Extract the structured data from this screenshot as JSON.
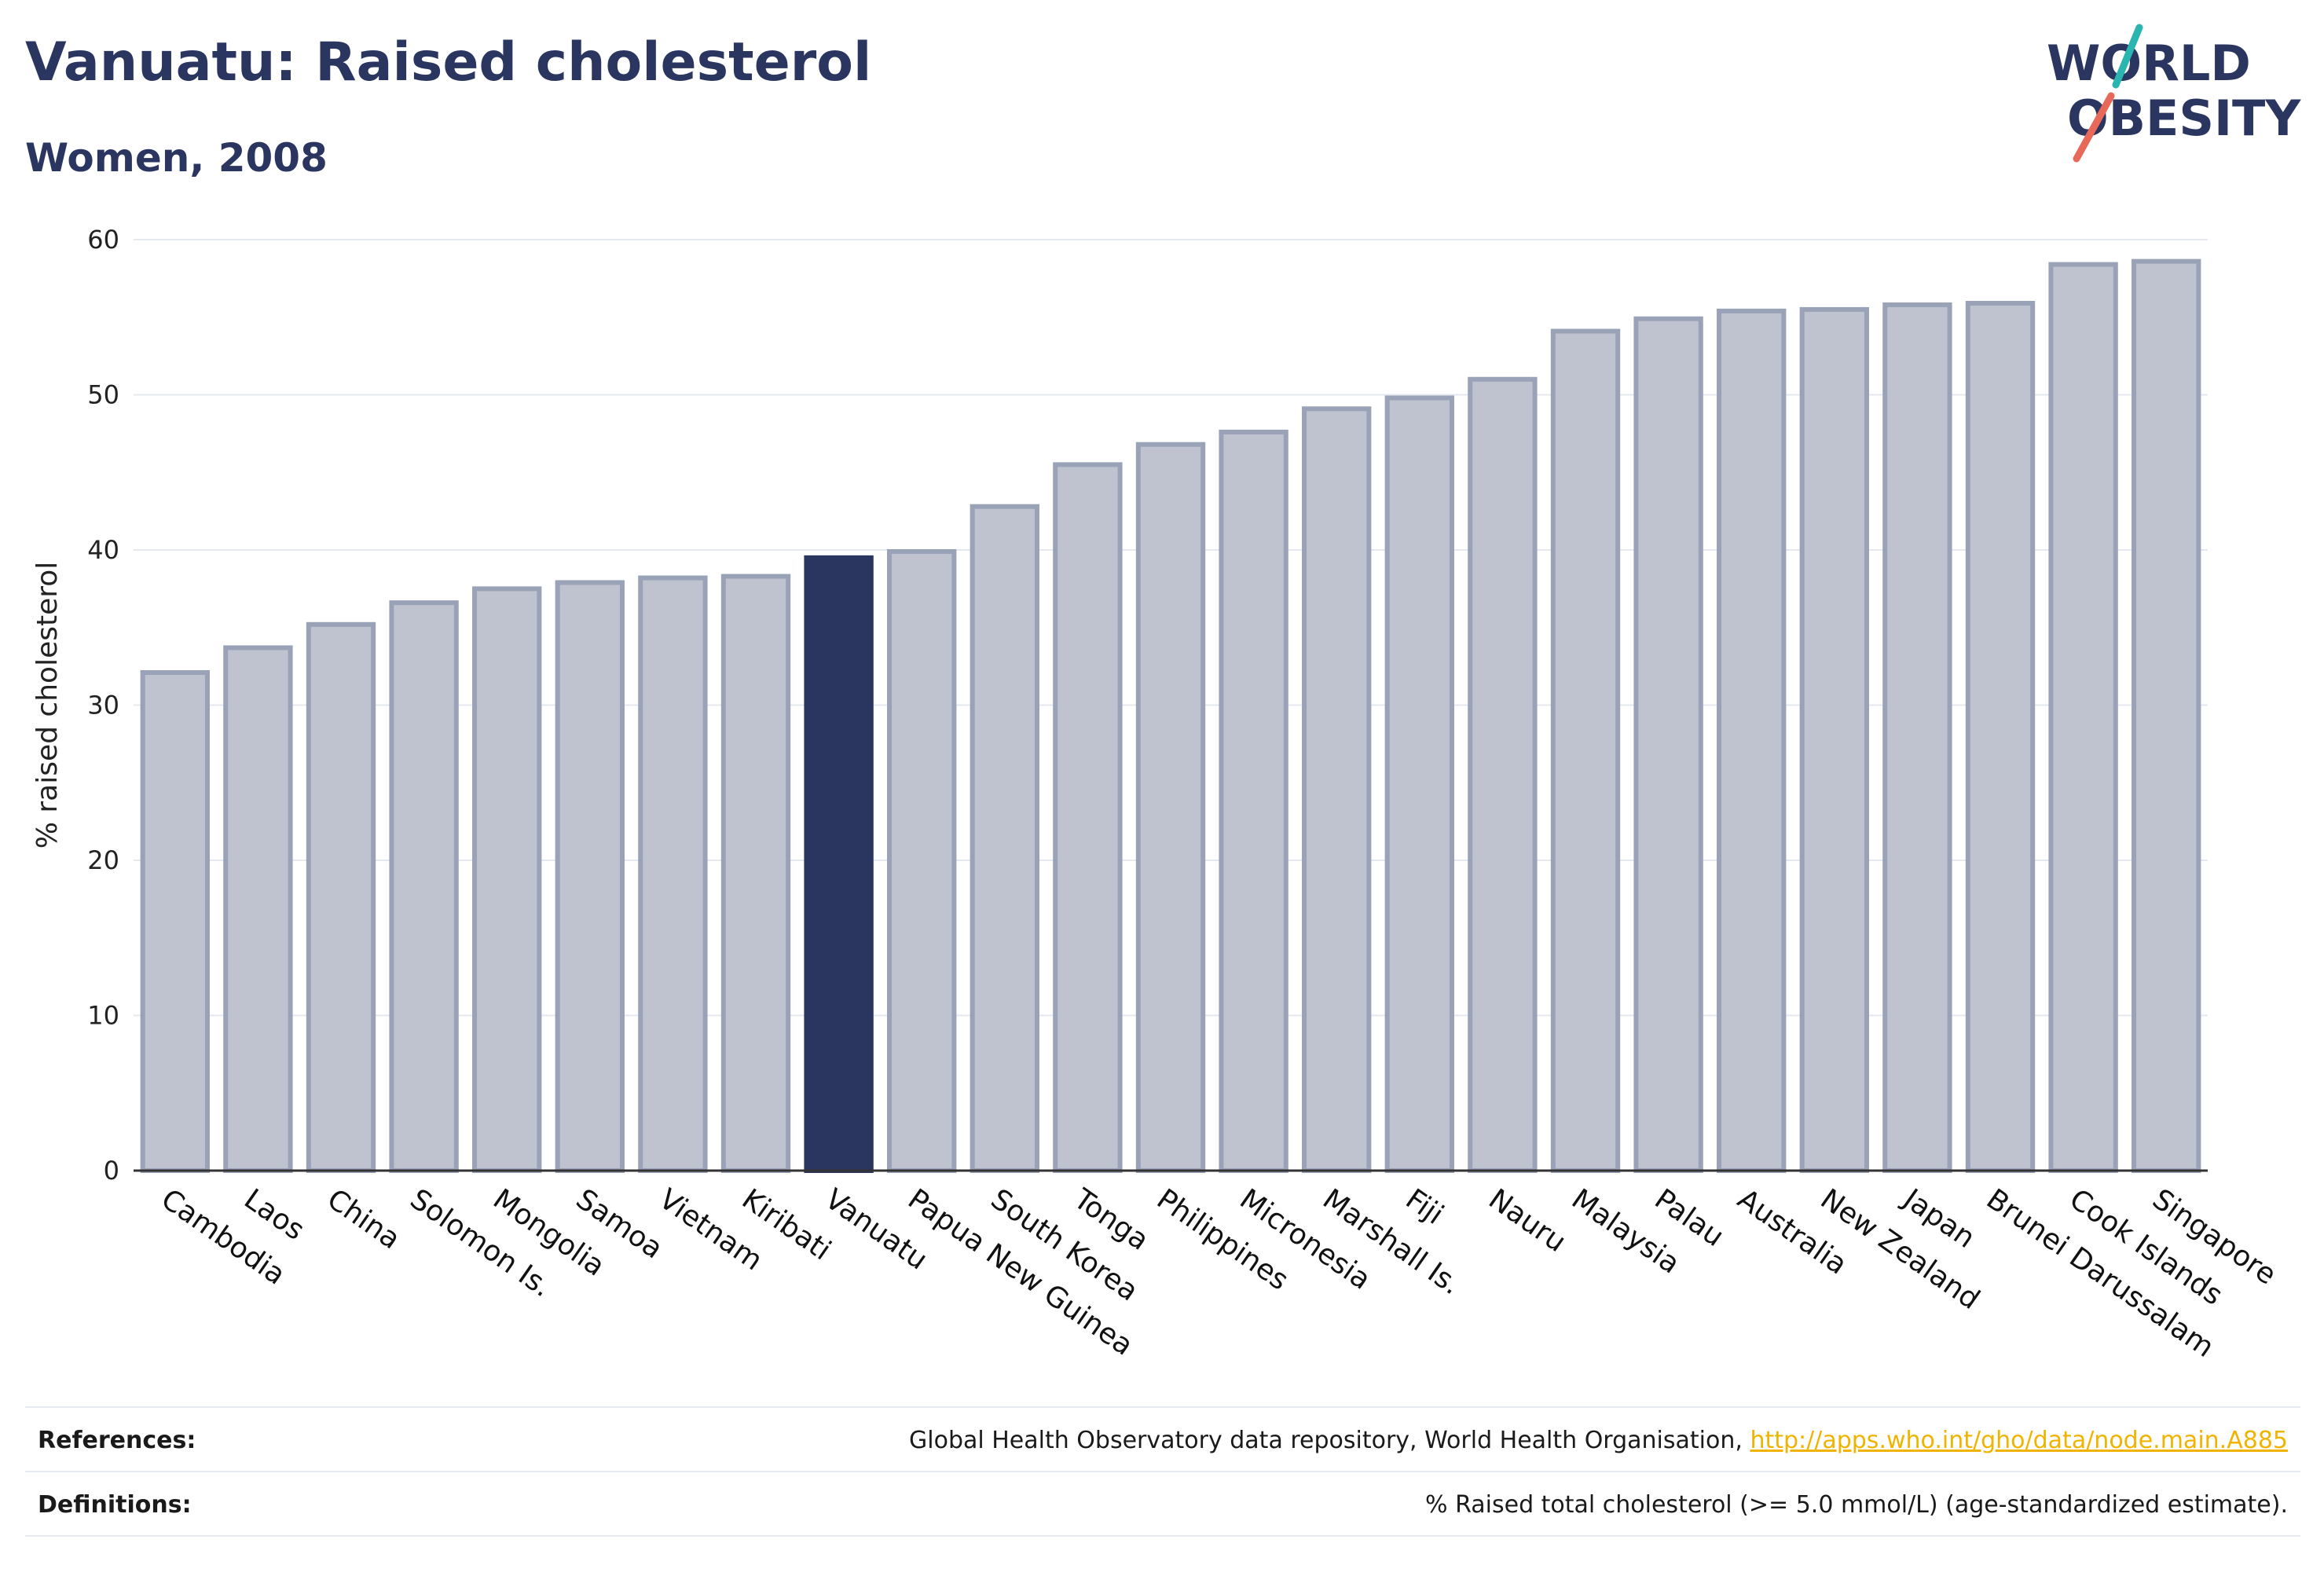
{
  "header": {
    "title": "Vanuatu: Raised cholesterol",
    "subtitle": "Women, 2008"
  },
  "logo": {
    "line1": "WORLD",
    "line2": "OBESITY",
    "name": "world-obesity-logo"
  },
  "colors": {
    "highlight": "#2a3560",
    "bar_fill": "#bfc3cf",
    "bar_stroke": "#9aa2b8",
    "grid": "#e6e8ef",
    "axis": "#333333",
    "link": "#f0b400"
  },
  "chart_data": {
    "type": "bar",
    "title": "Vanuatu: Raised cholesterol",
    "subtitle": "Women, 2008",
    "xlabel": "",
    "ylabel": "% raised cholesterol",
    "ylim": [
      0,
      60
    ],
    "yticks": [
      0,
      10,
      20,
      30,
      40,
      50,
      60
    ],
    "grid": true,
    "highlight": "Vanuatu",
    "categories": [
      "Cambodia",
      "Laos",
      "China",
      "Solomon Is.",
      "Mongolia",
      "Samoa",
      "Vietnam",
      "Kiribati",
      "Vanuatu",
      "Papua New Guinea",
      "South Korea",
      "Tonga",
      "Philippines",
      "Micronesia",
      "Marshall Is.",
      "Fiji",
      "Nauru",
      "Malaysia",
      "Palau",
      "Australia",
      "New Zealand",
      "Japan",
      "Brunei Darussalam",
      "Cook Islands",
      "Singapore"
    ],
    "values": [
      32.1,
      33.7,
      35.2,
      36.6,
      37.5,
      37.9,
      38.2,
      38.3,
      39.5,
      39.9,
      42.8,
      45.5,
      46.8,
      47.6,
      49.1,
      49.8,
      51.0,
      54.1,
      54.9,
      55.4,
      55.5,
      55.8,
      55.9,
      58.4,
      58.6
    ]
  },
  "footer": {
    "references_label": "References:",
    "references_text": "Global Health Observatory data repository, World Health Organisation, ",
    "references_link": "http://apps.who.int/gho/data/node.main.A885",
    "definitions_label": "Definitions:",
    "definitions_text": "% Raised total cholesterol (>= 5.0 mmol/L) (age-standardized estimate)."
  }
}
